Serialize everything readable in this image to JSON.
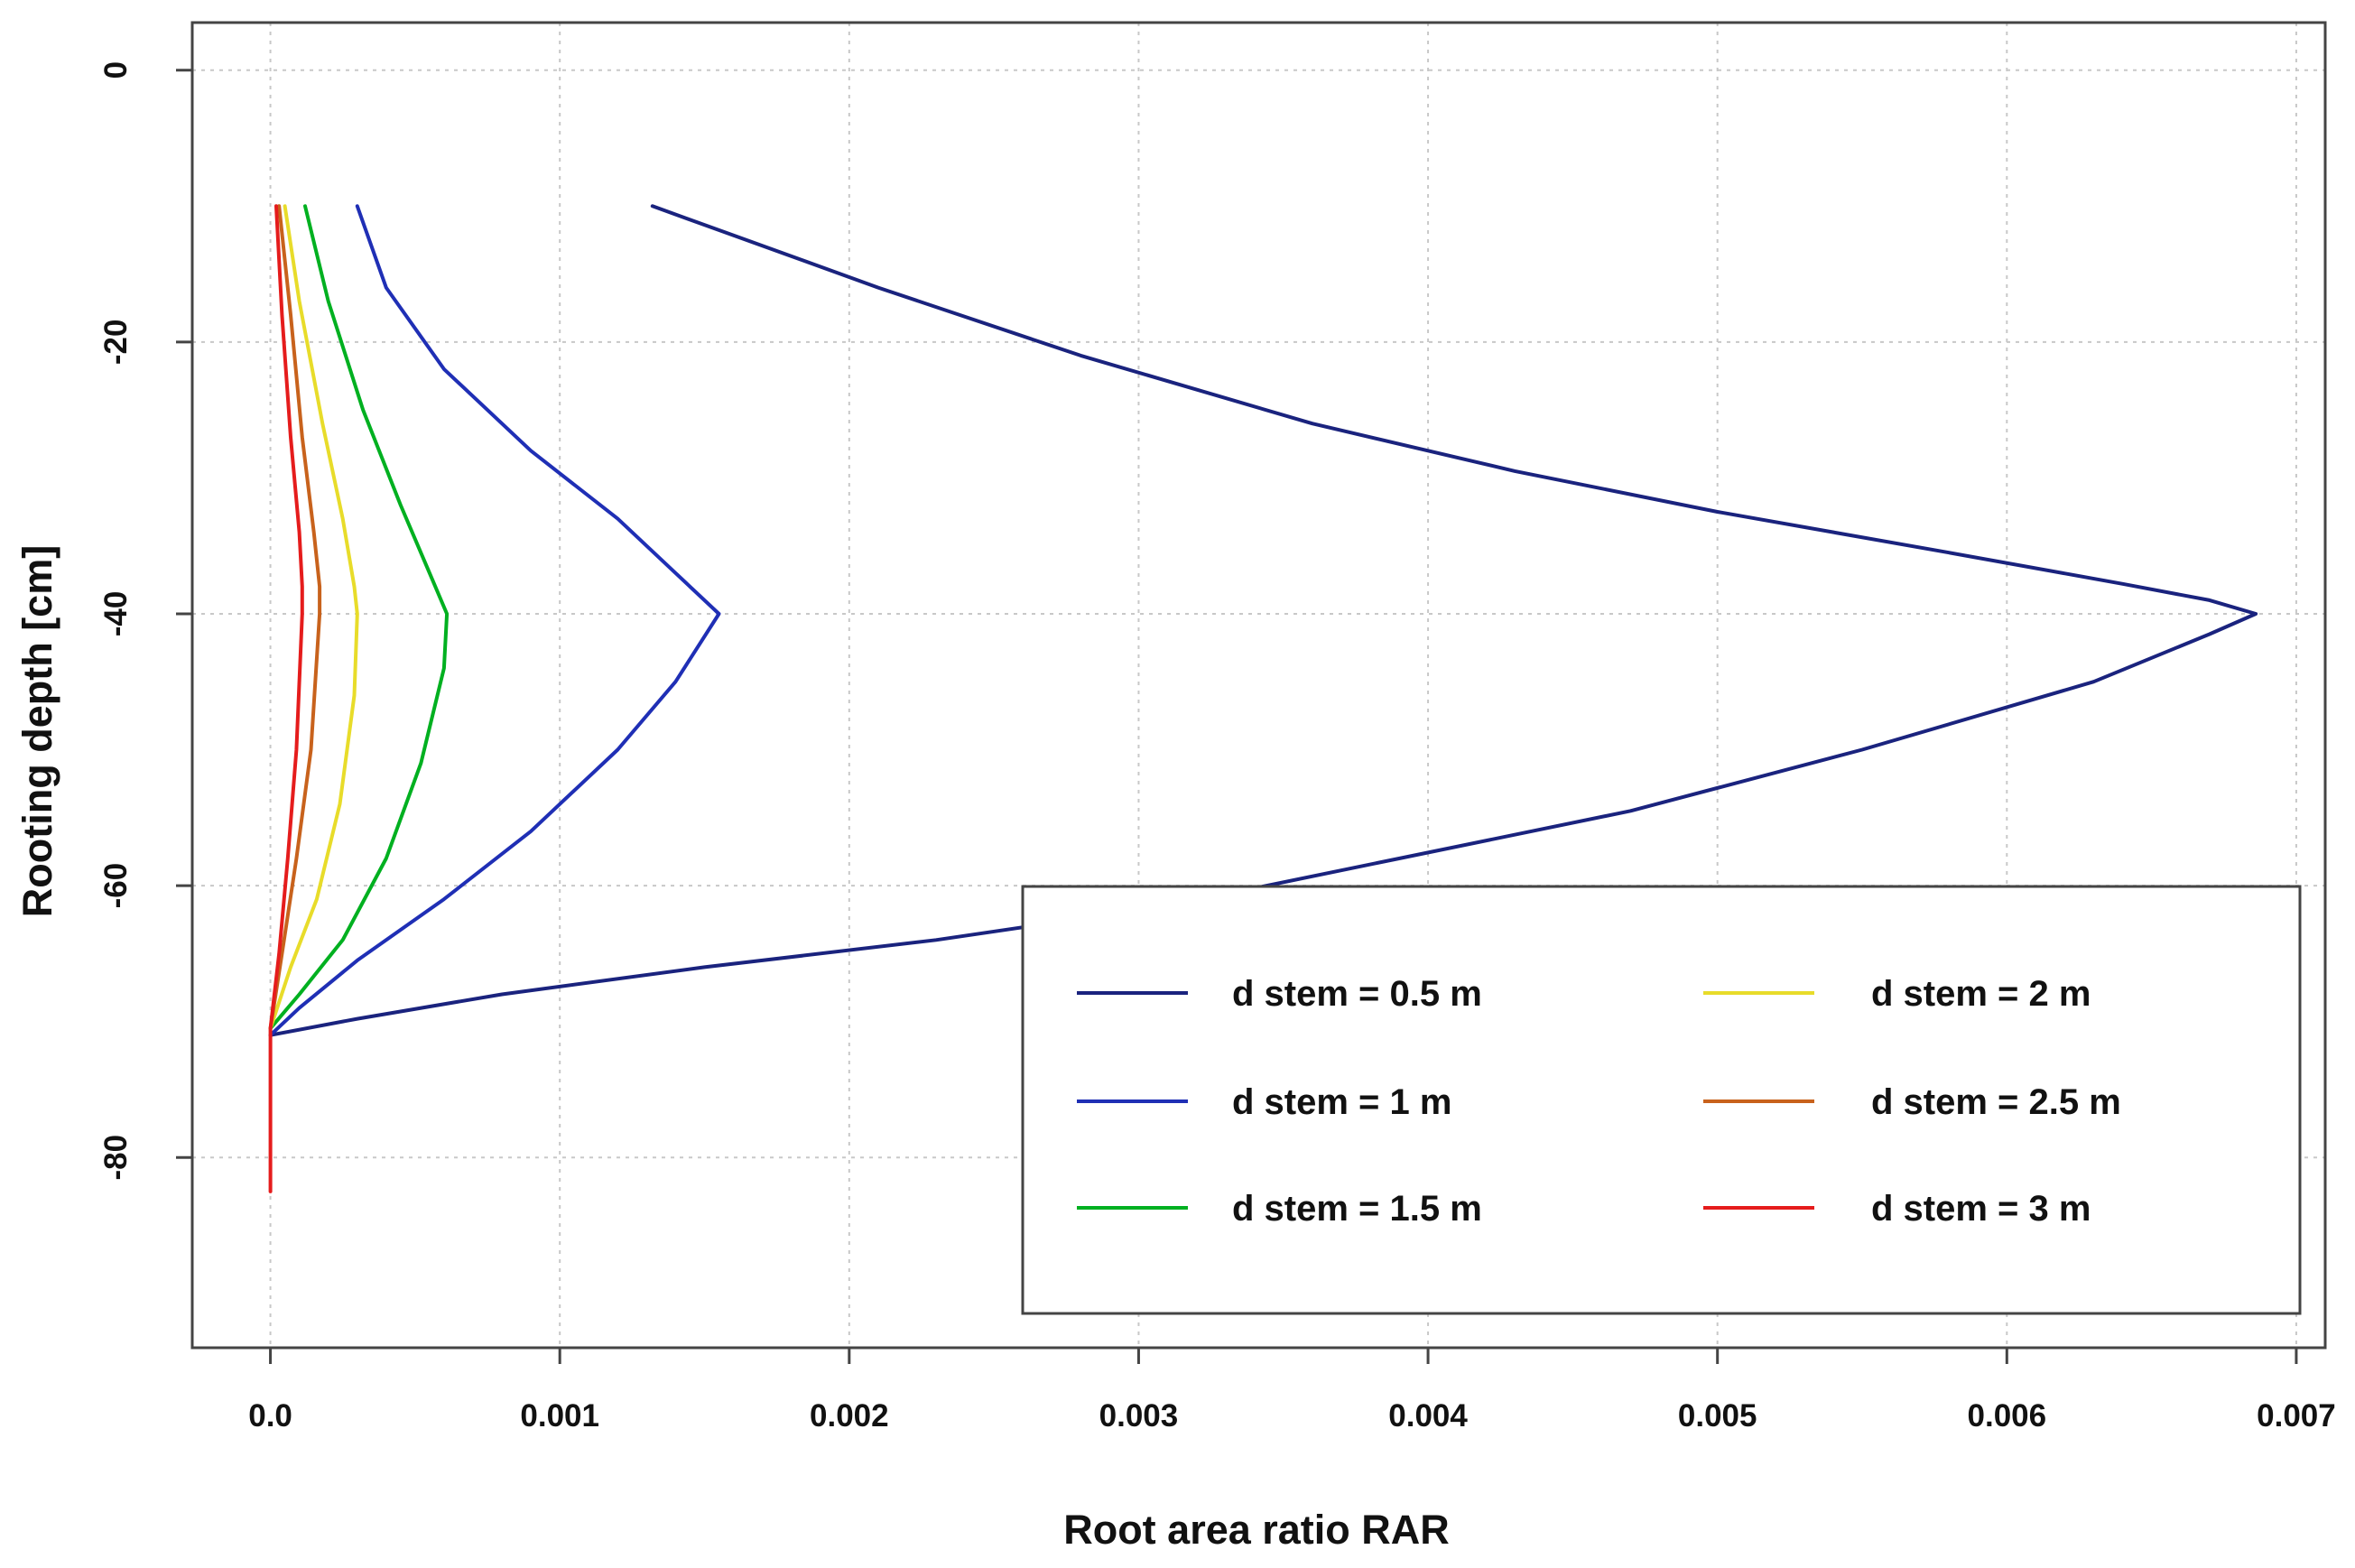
{
  "chart_data": {
    "type": "line",
    "title": "",
    "xlabel": "Root area ratio RAR",
    "ylabel": "Rooting depth [cm]",
    "xlim": [
      -0.00027,
      0.0071
    ],
    "ylim": [
      -94,
      3.5
    ],
    "x_ticks": [
      0,
      0.001,
      0.002,
      0.003,
      0.004,
      0.005,
      0.006,
      0.007
    ],
    "x_tick_labels": [
      "0.0",
      "0.001",
      "0.002",
      "0.003",
      "0.004",
      "0.005",
      "0.006",
      "0.007"
    ],
    "y_ticks": [
      0,
      -20,
      -40,
      -60,
      -80
    ],
    "y_tick_labels": [
      "0",
      "-20",
      "-40",
      "-60",
      "-80"
    ],
    "grid": true,
    "legend_position": "bottom-right",
    "series": [
      {
        "name": "d stem = 0.5 m",
        "color": "#1a237e",
        "x": [
          0.00132,
          0.0021,
          0.0028,
          0.0036,
          0.0043,
          0.005,
          0.0058,
          0.0064,
          0.0067,
          0.00686,
          0.0067,
          0.0063,
          0.0055,
          0.0047,
          0.0039,
          0.0031,
          0.0023,
          0.0015,
          0.0008,
          0.0003,
          0.0
        ],
        "y": [
          -10,
          -16,
          -21,
          -26,
          -29.5,
          -32.5,
          -35.5,
          -37.8,
          -39,
          -40,
          -41.5,
          -45,
          -50,
          -54.5,
          -58,
          -61.5,
          -64,
          -66,
          -68,
          -69.8,
          -71
        ]
      },
      {
        "name": "d stem = 1 m",
        "color": "#1f2fb5",
        "x": [
          0.0003,
          0.0004,
          0.0006,
          0.0009,
          0.0012,
          0.0014,
          0.00155,
          0.0014,
          0.0012,
          0.0009,
          0.0006,
          0.0003,
          0.0001,
          0.0
        ],
        "y": [
          -10,
          -16,
          -22,
          -28,
          -33,
          -37,
          -40,
          -45,
          -50,
          -56,
          -61,
          -65.5,
          -69,
          -71
        ]
      },
      {
        "name": "d stem = 1.5 m",
        "color": "#00b020",
        "x": [
          0.00012,
          0.0002,
          0.00032,
          0.00045,
          0.00055,
          0.00061,
          0.0006,
          0.00052,
          0.0004,
          0.00025,
          0.0001,
          0.0
        ],
        "y": [
          -10,
          -17,
          -25,
          -32,
          -37,
          -40,
          -44,
          -51,
          -58,
          -64,
          -68,
          -70.5
        ]
      },
      {
        "name": "d stem = 2 m",
        "color": "#e8dc2a",
        "x": [
          5e-05,
          0.0001,
          0.00018,
          0.00025,
          0.00029,
          0.0003,
          0.00029,
          0.00024,
          0.00016,
          7e-05,
          0.0
        ],
        "y": [
          -10,
          -17,
          -26,
          -33,
          -38,
          -40,
          -46,
          -54,
          -61,
          -66,
          -70.5
        ]
      },
      {
        "name": "d stem = 2.5 m",
        "color": "#c8621c",
        "x": [
          3e-05,
          7e-05,
          0.00011,
          0.00015,
          0.00017,
          0.00017,
          0.00014,
          9e-05,
          4e-05,
          0.0
        ],
        "y": [
          -10,
          -18,
          -27,
          -34,
          -38,
          -40,
          -50,
          -58,
          -65,
          -70.5
        ]
      },
      {
        "name": "d stem = 3 m",
        "color": "#e51c1c",
        "x": [
          2e-05,
          4e-05,
          7e-05,
          0.0001,
          0.00011,
          0.00011,
          9e-05,
          6e-05,
          3e-05,
          0.0,
          0.0,
          0.0
        ],
        "y": [
          -10,
          -18,
          -27,
          -34,
          -38,
          -40,
          -50,
          -58,
          -65,
          -70.5,
          -76,
          -82.5
        ]
      }
    ]
  }
}
